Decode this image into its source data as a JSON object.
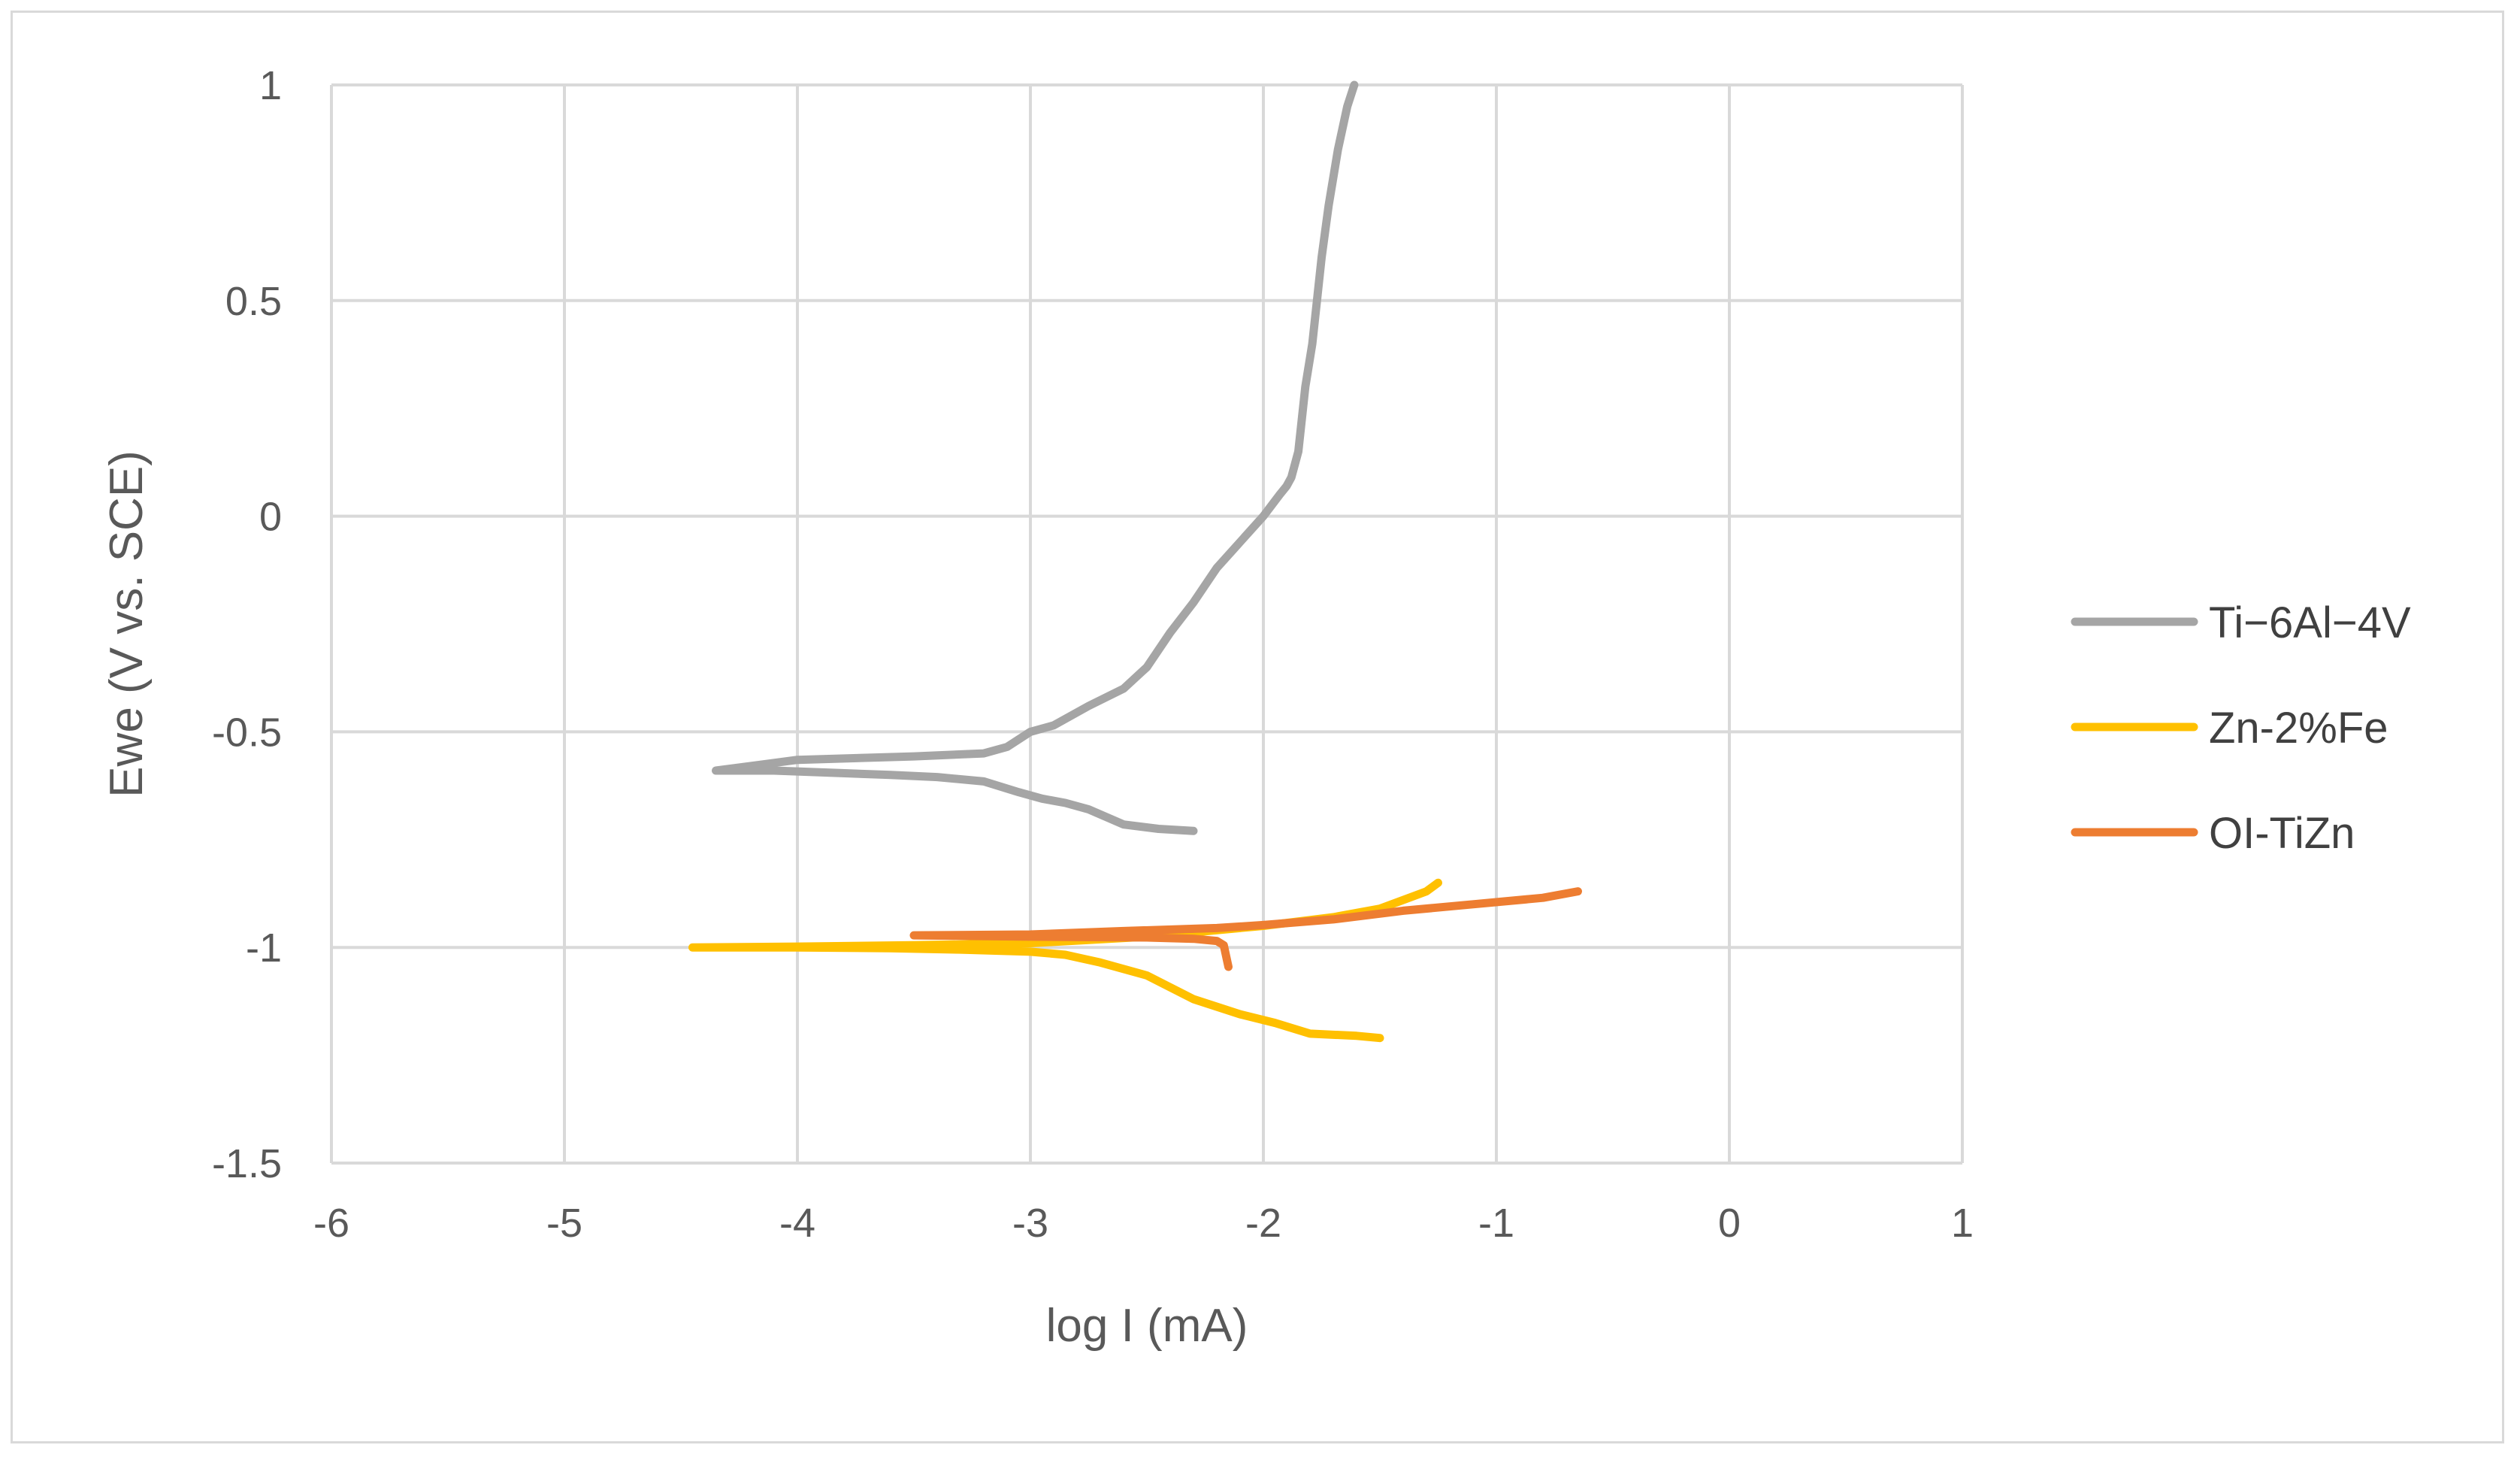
{
  "chart_data": {
    "type": "line",
    "title": "",
    "xlabel": "log I (mA)",
    "ylabel": "Ewe (V vs. SCE)",
    "xlim": [
      -6,
      1
    ],
    "ylim": [
      -1.5,
      1
    ],
    "x_ticks": [
      -6,
      -5,
      -4,
      -3,
      -2,
      -1,
      0,
      1
    ],
    "y_ticks": [
      -1.5,
      -1,
      -0.5,
      0,
      0.5,
      1
    ],
    "x_tick_labels": [
      "-6",
      "-5",
      "-4",
      "-3",
      "-2",
      "-1",
      "0",
      "1"
    ],
    "y_tick_labels": [
      "-1.5",
      "-1",
      "-0.5",
      "0",
      "0.5",
      "1"
    ],
    "grid": true,
    "legend_position": "right",
    "series": [
      {
        "name": "Ti−6Al−4V",
        "color": "#a5a5a5",
        "x": [
          -2.3,
          -2.45,
          -2.6,
          -2.75,
          -2.85,
          -2.95,
          -3.05,
          -3.2,
          -3.4,
          -3.6,
          -3.85,
          -4.1,
          -4.35,
          -4.0,
          -3.5,
          -3.2,
          -3.1,
          -3.0,
          -2.9,
          -2.75,
          -2.6,
          -2.5,
          -2.4,
          -2.3,
          -2.2,
          -2.1,
          -2.0,
          -1.93,
          -1.9,
          -1.88,
          -1.85,
          -1.82,
          -1.79,
          -1.77,
          -1.75,
          -1.72,
          -1.68,
          -1.64,
          -1.61
        ],
        "y": [
          -0.73,
          -0.725,
          -0.715,
          -0.68,
          -0.665,
          -0.655,
          -0.64,
          -0.615,
          -0.605,
          -0.6,
          -0.595,
          -0.59,
          -0.59,
          -0.565,
          -0.557,
          -0.55,
          -0.535,
          -0.5,
          -0.485,
          -0.44,
          -0.4,
          -0.35,
          -0.27,
          -0.2,
          -0.12,
          -0.06,
          0.0,
          0.05,
          0.07,
          0.09,
          0.15,
          0.3,
          0.4,
          0.5,
          0.6,
          0.72,
          0.85,
          0.95,
          1.0
        ]
      },
      {
        "name": "Zn-2%Fe",
        "color": "#ffc000",
        "x": [
          -1.5,
          -1.6,
          -1.8,
          -1.95,
          -2.1,
          -2.3,
          -2.5,
          -2.7,
          -2.85,
          -3.0,
          -3.3,
          -3.6,
          -4.0,
          -4.45,
          -4.0,
          -3.5,
          -3.0,
          -2.5,
          -2.0,
          -1.7,
          -1.5,
          -1.4,
          -1.3,
          -1.25
        ],
        "y": [
          -1.21,
          -1.205,
          -1.2,
          -1.175,
          -1.155,
          -1.12,
          -1.065,
          -1.035,
          -1.017,
          -1.01,
          -1.005,
          -1.002,
          -1.0,
          -1.0,
          -0.998,
          -0.995,
          -0.99,
          -0.975,
          -0.95,
          -0.93,
          -0.91,
          -0.89,
          -0.87,
          -0.85
        ]
      },
      {
        "name": "OI-TiZn",
        "color": "#ed7d31",
        "x": [
          -2.15,
          -2.16,
          -2.17,
          -2.2,
          -2.3,
          -2.5,
          -3.0,
          -3.5,
          -3.0,
          -2.6,
          -2.2,
          -2.0,
          -1.7,
          -1.4,
          -1.1,
          -0.8,
          -0.65
        ],
        "y": [
          -1.045,
          -1.02,
          -0.995,
          -0.985,
          -0.98,
          -0.977,
          -0.975,
          -0.972,
          -0.97,
          -0.962,
          -0.955,
          -0.948,
          -0.935,
          -0.915,
          -0.9,
          -0.885,
          -0.87
        ]
      }
    ]
  }
}
